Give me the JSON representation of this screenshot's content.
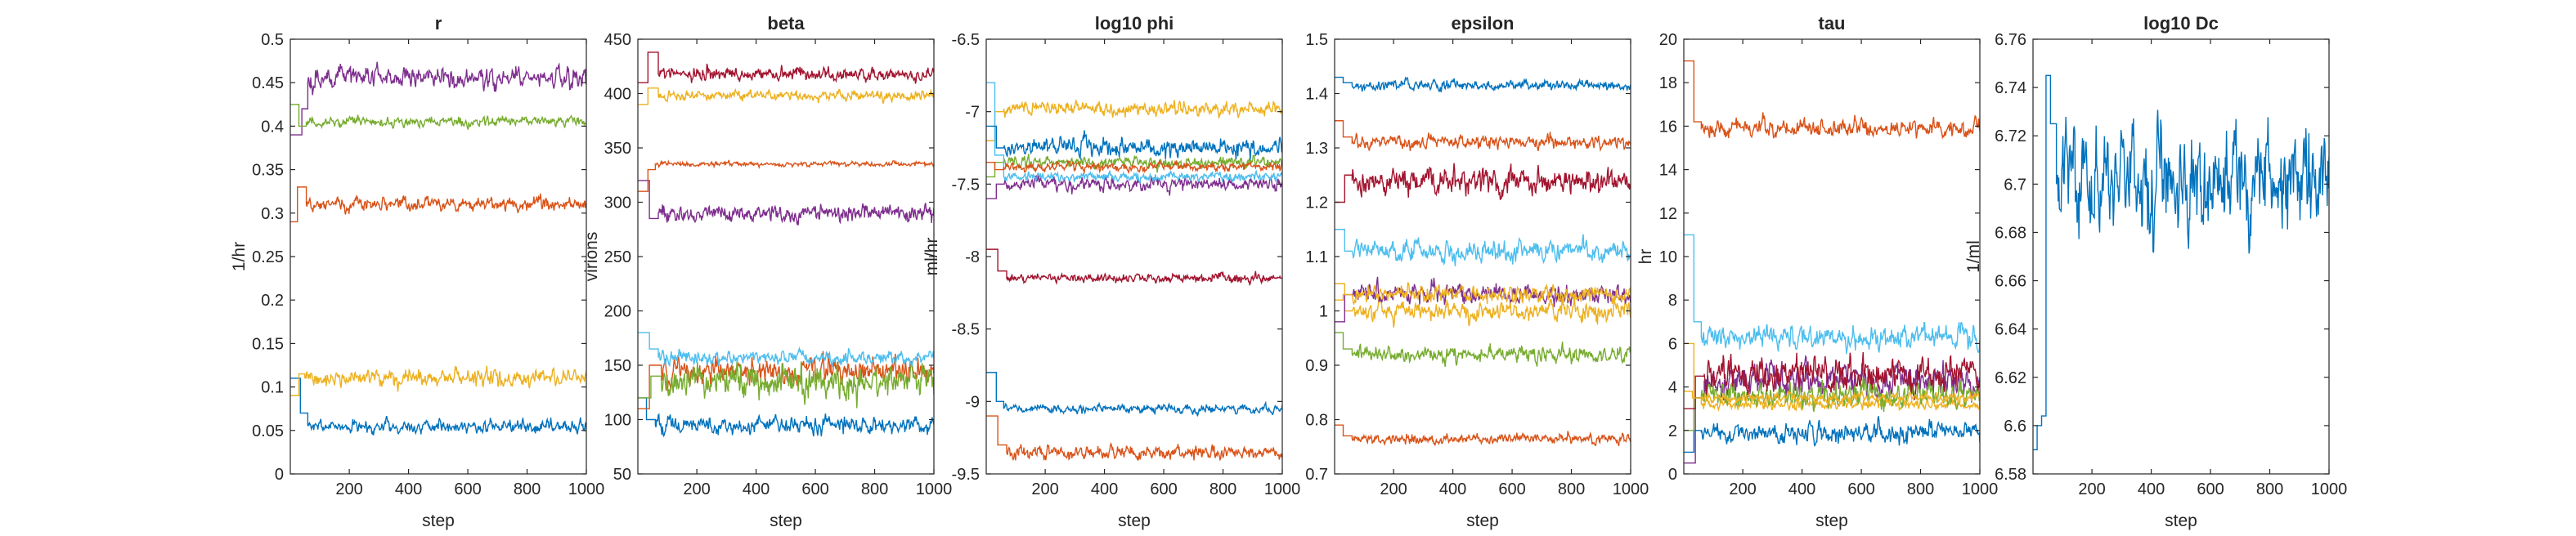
{
  "figure": {
    "palette": [
      "#0072BD",
      "#D95319",
      "#EDB120",
      "#7E2F8E",
      "#77AC30",
      "#4DBEEE",
      "#A2142F"
    ]
  },
  "panels": [
    {
      "title": "r",
      "xlabel": "step",
      "ylabel": "1/hr",
      "xlim": [
        1,
        1000
      ],
      "ylim": [
        0,
        0.5
      ],
      "xticks": [
        200,
        400,
        600,
        800,
        1000
      ],
      "yticks": [
        0,
        0.05,
        0.1,
        0.15,
        0.2,
        0.25,
        0.3,
        0.35,
        0.4,
        0.45,
        0.5
      ],
      "ytick_labels": [
        "0",
        "0.05",
        "0.1",
        "0.15",
        "0.2",
        "0.25",
        "0.3",
        "0.35",
        "0.4",
        "0.45",
        "0.5"
      ]
    },
    {
      "title": "beta",
      "xlabel": "step",
      "ylabel": "virions",
      "xlim": [
        1,
        1000
      ],
      "ylim": [
        50,
        450
      ],
      "xticks": [
        200,
        400,
        600,
        800,
        1000
      ],
      "yticks": [
        50,
        100,
        150,
        200,
        250,
        300,
        350,
        400,
        450
      ],
      "ytick_labels": [
        "50",
        "100",
        "150",
        "200",
        "250",
        "300",
        "350",
        "400",
        "450"
      ]
    },
    {
      "title": "log10 phi",
      "xlabel": "step",
      "ylabel": "ml/hr",
      "xlim": [
        1,
        1000
      ],
      "ylim": [
        -9.5,
        -6.5
      ],
      "xticks": [
        200,
        400,
        600,
        800,
        1000
      ],
      "yticks": [
        -9.5,
        -9,
        -8.5,
        -8,
        -7.5,
        -7,
        -6.5
      ],
      "ytick_labels": [
        "-9.5",
        "-9",
        "-8.5",
        "-8",
        "-7.5",
        "-7",
        "-6.5"
      ]
    },
    {
      "title": "epsilon",
      "xlabel": "step",
      "ylabel": "",
      "xlim": [
        1,
        1000
      ],
      "ylim": [
        0.7,
        1.5
      ],
      "xticks": [
        200,
        400,
        600,
        800,
        1000
      ],
      "yticks": [
        0.7,
        0.8,
        0.9,
        1.0,
        1.1,
        1.2,
        1.3,
        1.4,
        1.5
      ],
      "ytick_labels": [
        "0.7",
        "0.8",
        "0.9",
        "1",
        "1.1",
        "1.2",
        "1.3",
        "1.4",
        "1.5"
      ]
    },
    {
      "title": "tau",
      "xlabel": "step",
      "ylabel": "hr",
      "xlim": [
        1,
        1000
      ],
      "ylim": [
        0,
        20
      ],
      "xticks": [
        200,
        400,
        600,
        800,
        1000
      ],
      "yticks": [
        0,
        2,
        4,
        6,
        8,
        10,
        12,
        14,
        16,
        18,
        20
      ],
      "ytick_labels": [
        "0",
        "2",
        "4",
        "6",
        "8",
        "10",
        "12",
        "14",
        "16",
        "18",
        "20"
      ]
    },
    {
      "title": "log10 Dc",
      "xlabel": "step",
      "ylabel": "1/ml",
      "xlim": [
        1,
        1000
      ],
      "ylim": [
        6.58,
        6.76
      ],
      "xticks": [
        200,
        400,
        600,
        800,
        1000
      ],
      "yticks": [
        6.58,
        6.6,
        6.62,
        6.64,
        6.66,
        6.68,
        6.7,
        6.72,
        6.74,
        6.76
      ],
      "ytick_labels": [
        "6.58",
        "6.6",
        "6.62",
        "6.64",
        "6.66",
        "6.68",
        "6.7",
        "6.72",
        "6.74",
        "6.76"
      ]
    }
  ],
  "chart_data": [
    {
      "type": "line",
      "title": "r",
      "xlabel": "step",
      "ylabel": "1/hr",
      "xlim": [
        1,
        1000
      ],
      "ylim": [
        0,
        0.5
      ],
      "series": [
        {
          "color": "#0072BD",
          "mean": 0.055,
          "noise": 0.005,
          "start": [
            [
              1,
              0.11
            ],
            [
              35,
              0.07
            ],
            [
              60,
              0.055
            ]
          ]
        },
        {
          "color": "#D95319",
          "mean": 0.31,
          "noise": 0.005,
          "start": [
            [
              1,
              0.29
            ],
            [
              25,
              0.33
            ],
            [
              55,
              0.31
            ]
          ]
        },
        {
          "color": "#EDB120",
          "mean": 0.11,
          "noise": 0.006,
          "start": [
            [
              1,
              0.09
            ],
            [
              30,
              0.115
            ],
            [
              50,
              0.11
            ]
          ]
        },
        {
          "color": "#7E2F8E",
          "mean": 0.455,
          "noise": 0.008,
          "start": [
            [
              1,
              0.39
            ],
            [
              40,
              0.42
            ],
            [
              60,
              0.45
            ]
          ]
        },
        {
          "color": "#77AC30",
          "mean": 0.405,
          "noise": 0.004,
          "start": [
            [
              1,
              0.425
            ],
            [
              30,
              0.4
            ],
            [
              55,
              0.405
            ]
          ]
        }
      ]
    },
    {
      "type": "line",
      "title": "beta",
      "xlabel": "step",
      "ylabel": "virions",
      "xlim": [
        1,
        1000
      ],
      "ylim": [
        50,
        450
      ],
      "series": [
        {
          "color": "#0072BD",
          "mean": 95,
          "noise": 5,
          "start": [
            [
              1,
              120
            ],
            [
              30,
              100
            ],
            [
              60,
              95
            ]
          ]
        },
        {
          "color": "#D95319",
          "mean": 145,
          "noise": 8,
          "start": [
            [
              1,
              110
            ],
            [
              40,
              150
            ],
            [
              80,
              145
            ]
          ]
        },
        {
          "color": "#EDB120",
          "mean": 398,
          "noise": 3,
          "start": [
            [
              1,
              390
            ],
            [
              35,
              405
            ],
            [
              70,
              398
            ]
          ]
        },
        {
          "color": "#7E2F8E",
          "mean": 290,
          "noise": 5,
          "start": [
            [
              1,
              320
            ],
            [
              40,
              285
            ],
            [
              70,
              290
            ]
          ]
        },
        {
          "color": "#77AC30",
          "mean": 135,
          "noise": 10,
          "start": [
            [
              1,
              120
            ],
            [
              45,
              140
            ],
            [
              80,
              135
            ]
          ]
        },
        {
          "color": "#4DBEEE",
          "mean": 157,
          "noise": 4,
          "start": [
            [
              1,
              180
            ],
            [
              40,
              165
            ],
            [
              70,
              157
            ]
          ]
        },
        {
          "color": "#A2142F",
          "mean": 418,
          "noise": 4,
          "start": [
            [
              1,
              410
            ],
            [
              35,
              438
            ],
            [
              70,
              418
            ]
          ]
        },
        {
          "color": "#D95319",
          "mean": 335,
          "noise": 1.5,
          "start": [
            [
              1,
              310
            ],
            [
              35,
              330
            ],
            [
              60,
              335
            ]
          ]
        }
      ]
    },
    {
      "type": "line",
      "title": "log10 phi",
      "xlabel": "step",
      "ylabel": "ml/hr",
      "xlim": [
        1,
        1000
      ],
      "ylim": [
        -9.5,
        -6.5
      ],
      "series": [
        {
          "color": "#0072BD",
          "mean": -9.05,
          "noise": 0.02,
          "start": [
            [
              1,
              -8.8
            ],
            [
              35,
              -9.0
            ],
            [
              60,
              -9.05
            ]
          ]
        },
        {
          "color": "#D95319",
          "mean": -9.35,
          "noise": 0.03,
          "start": [
            [
              1,
              -9.1
            ],
            [
              40,
              -9.3
            ],
            [
              70,
              -9.35
            ]
          ]
        },
        {
          "color": "#EDB120",
          "mean": -6.98,
          "noise": 0.03,
          "start": [
            [
              1,
              -7.2
            ],
            [
              30,
              -7.0
            ],
            [
              60,
              -6.98
            ]
          ]
        },
        {
          "color": "#7E2F8E",
          "mean": -7.5,
          "noise": 0.03,
          "start": [
            [
              1,
              -7.6
            ],
            [
              35,
              -7.5
            ],
            [
              60,
              -7.5
            ]
          ]
        },
        {
          "color": "#77AC30",
          "mean": -7.35,
          "noise": 0.025,
          "start": [
            [
              1,
              -7.45
            ],
            [
              30,
              -7.35
            ],
            [
              60,
              -7.35
            ]
          ]
        },
        {
          "color": "#4DBEEE",
          "mean": -7.45,
          "noise": 0.02,
          "start": [
            [
              1,
              -6.8
            ],
            [
              30,
              -7.3
            ],
            [
              60,
              -7.45
            ]
          ]
        },
        {
          "color": "#A2142F",
          "mean": -8.15,
          "noise": 0.02,
          "start": [
            [
              1,
              -7.95
            ],
            [
              40,
              -8.1
            ],
            [
              70,
              -8.15
            ]
          ]
        },
        {
          "color": "#0072BD",
          "mean": -7.25,
          "noise": 0.04,
          "start": [
            [
              1,
              -7.1
            ],
            [
              35,
              -7.25
            ],
            [
              60,
              -7.25
            ]
          ]
        },
        {
          "color": "#D95319",
          "mean": -7.38,
          "noise": 0.02,
          "start": [
            [
              1,
              -7.35
            ],
            [
              30,
              -7.4
            ],
            [
              60,
              -7.38
            ]
          ]
        }
      ]
    },
    {
      "type": "line",
      "title": "epsilon",
      "xlabel": "step",
      "ylabel": "",
      "xlim": [
        1,
        1000
      ],
      "ylim": [
        0.7,
        1.5
      ],
      "series": [
        {
          "color": "#0072BD",
          "mean": 1.415,
          "noise": 0.006,
          "start": [
            [
              1,
              1.43
            ],
            [
              30,
              1.42
            ],
            [
              60,
              1.415
            ]
          ]
        },
        {
          "color": "#D95319",
          "mean": 1.31,
          "noise": 0.008,
          "start": [
            [
              1,
              1.35
            ],
            [
              30,
              1.32
            ],
            [
              60,
              1.31
            ]
          ]
        },
        {
          "color": "#EDB120",
          "mean": 1.0,
          "noise": 0.012,
          "start": [
            [
              1,
              1.05
            ],
            [
              35,
              1.0
            ],
            [
              60,
              1.0
            ]
          ]
        },
        {
          "color": "#7E2F8E",
          "mean": 1.03,
          "noise": 0.012,
          "start": [
            [
              1,
              0.98
            ],
            [
              35,
              1.03
            ],
            [
              60,
              1.03
            ]
          ]
        },
        {
          "color": "#77AC30",
          "mean": 0.92,
          "noise": 0.01,
          "start": [
            [
              1,
              0.96
            ],
            [
              30,
              0.93
            ],
            [
              60,
              0.92
            ]
          ]
        },
        {
          "color": "#4DBEEE",
          "mean": 1.11,
          "noise": 0.012,
          "start": [
            [
              1,
              1.15
            ],
            [
              35,
              1.11
            ],
            [
              60,
              1.11
            ]
          ]
        },
        {
          "color": "#A2142F",
          "mean": 1.24,
          "noise": 0.015,
          "start": [
            [
              1,
              1.2
            ],
            [
              35,
              1.25
            ],
            [
              60,
              1.24
            ]
          ]
        },
        {
          "color": "#D95319",
          "mean": 0.765,
          "noise": 0.006,
          "start": [
            [
              1,
              0.79
            ],
            [
              30,
              0.77
            ],
            [
              60,
              0.765
            ]
          ]
        },
        {
          "color": "#EDB120",
          "mean": 1.03,
          "noise": 0.01,
          "start": [
            [
              1,
              1.02
            ],
            [
              30,
              1.03
            ],
            [
              60,
              1.03
            ]
          ]
        }
      ]
    },
    {
      "type": "line",
      "title": "tau",
      "xlabel": "step",
      "ylabel": "hr",
      "xlim": [
        1,
        1000
      ],
      "ylim": [
        0,
        20
      ],
      "series": [
        {
          "color": "#0072BD",
          "mean": 1.9,
          "noise": 0.3,
          "start": [
            [
              1,
              1.0
            ],
            [
              35,
              2.0
            ],
            [
              60,
              1.9
            ]
          ]
        },
        {
          "color": "#D95319",
          "mean": 15.9,
          "noise": 0.25,
          "start": [
            [
              1,
              19.0
            ],
            [
              35,
              16.2
            ],
            [
              60,
              15.9
            ]
          ]
        },
        {
          "color": "#EDB120",
          "mean": 3.2,
          "noise": 0.15,
          "start": [
            [
              1,
              6.0
            ],
            [
              35,
              3.5
            ],
            [
              60,
              3.2
            ]
          ]
        },
        {
          "color": "#7E2F8E",
          "mean": 4.3,
          "noise": 0.5,
          "start": [
            [
              1,
              0.5
            ],
            [
              40,
              3.5
            ],
            [
              70,
              4.3
            ]
          ]
        },
        {
          "color": "#77AC30",
          "mean": 3.6,
          "noise": 0.4,
          "start": [
            [
              1,
              2.0
            ],
            [
              35,
              3.5
            ],
            [
              60,
              3.6
            ]
          ]
        },
        {
          "color": "#4DBEEE",
          "mean": 6.3,
          "noise": 0.35,
          "start": [
            [
              1,
              11.0
            ],
            [
              35,
              7.0
            ],
            [
              60,
              6.3
            ]
          ]
        },
        {
          "color": "#A2142F",
          "mean": 4.6,
          "noise": 0.5,
          "start": [
            [
              1,
              3.0
            ],
            [
              40,
              4.5
            ],
            [
              70,
              4.6
            ]
          ]
        },
        {
          "color": "#EDB120",
          "mean": 3.5,
          "noise": 0.15,
          "start": [
            [
              1,
              3.8
            ],
            [
              30,
              3.5
            ],
            [
              60,
              3.5
            ]
          ]
        }
      ]
    },
    {
      "type": "line",
      "title": "log10 Dc",
      "xlabel": "step",
      "ylabel": "1/ml",
      "xlim": [
        1,
        1000
      ],
      "ylim": [
        6.58,
        6.76
      ],
      "series": [
        {
          "color": "#0072BD",
          "mean": 6.7,
          "noise": 0.014,
          "start": [
            [
              1,
              6.59
            ],
            [
              15,
              6.6
            ],
            [
              30,
              6.604
            ],
            [
              45,
              6.745
            ],
            [
              60,
              6.725
            ],
            [
              80,
              6.7
            ]
          ]
        }
      ]
    }
  ]
}
